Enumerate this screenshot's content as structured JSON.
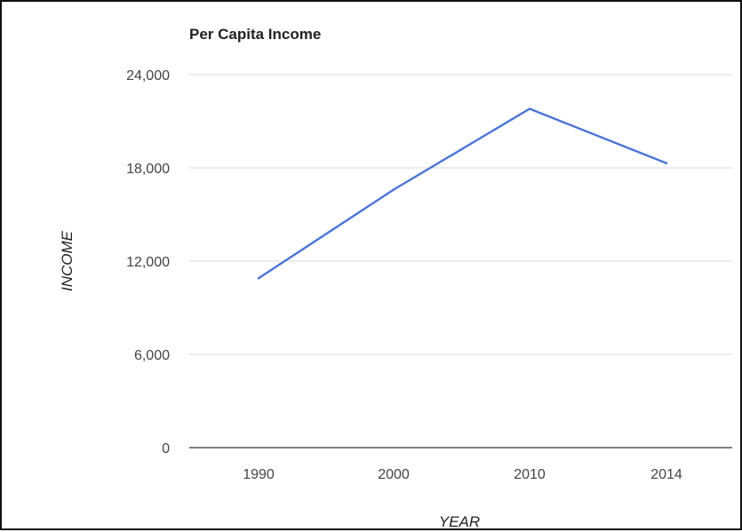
{
  "chart_data": {
    "type": "line",
    "title": "Per Capita Income",
    "xlabel": "YEAR",
    "ylabel": "INCOME",
    "categories": [
      "1990",
      "2000",
      "2010",
      "2014"
    ],
    "series": [
      {
        "values": [
          10900,
          16600,
          21800,
          18300
        ],
        "color": "#4a74d6"
      }
    ],
    "ylim": [
      0,
      24000
    ],
    "yticks": [
      "0",
      "6,000",
      "12,000",
      "18,000",
      "24,000"
    ],
    "ytick_values": [
      0,
      6000,
      12000,
      18000,
      24000
    ],
    "grid": true,
    "legend": "none"
  }
}
